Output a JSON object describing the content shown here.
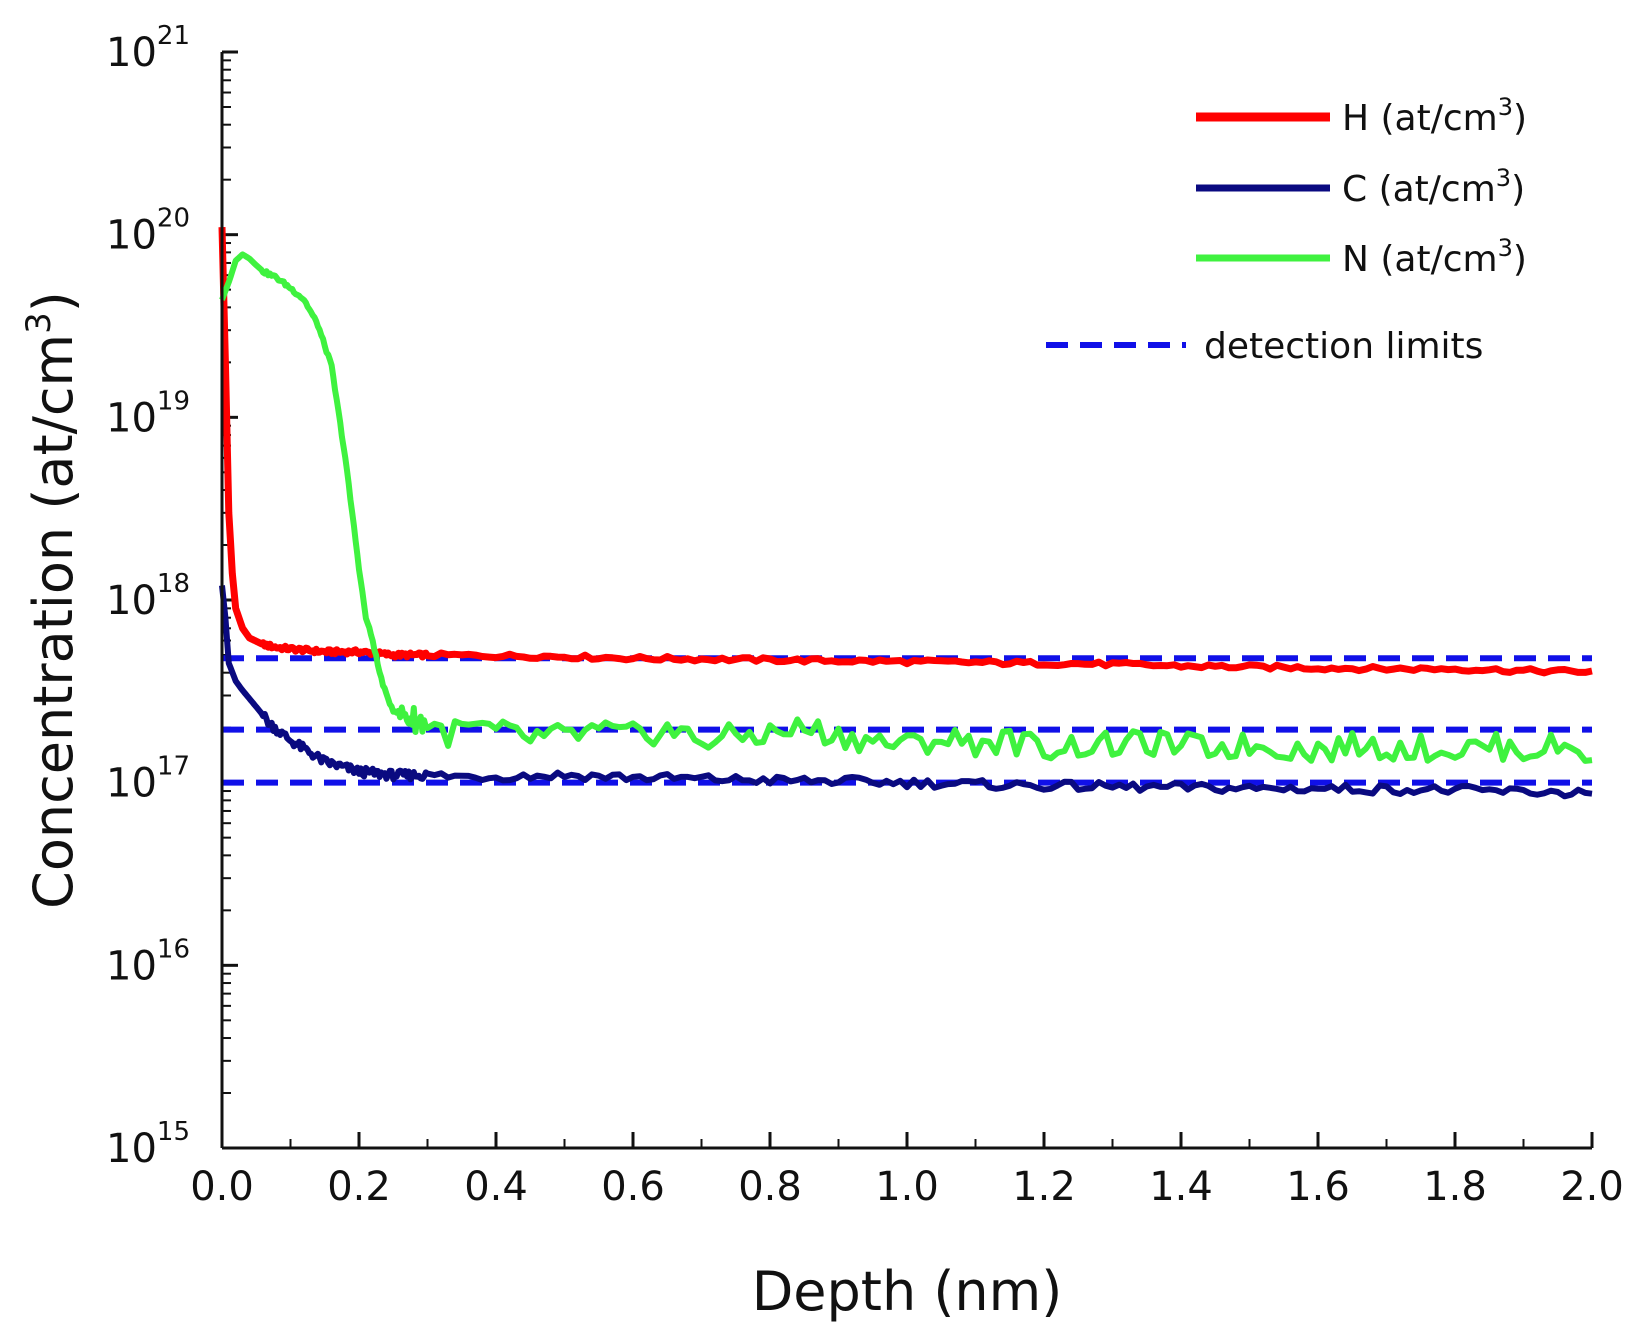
{
  "chart_data": {
    "type": "line",
    "title": "",
    "xlabel": "Depth (nm)",
    "ylabel_main": "Concentration (at/cm",
    "ylabel_sup": "3",
    "ylabel_close": ")",
    "xlim": [
      0.0,
      2.0
    ],
    "ylim": [
      1000000000000000.0,
      1e+21
    ],
    "yscale": "log",
    "xticks": [
      "0.0",
      "0.2",
      "0.4",
      "0.6",
      "0.8",
      "1.0",
      "1.2",
      "1.4",
      "1.6",
      "1.8",
      "2.0"
    ],
    "yticks": [
      {
        "base": "10",
        "exp": "15"
      },
      {
        "base": "10",
        "exp": "16"
      },
      {
        "base": "10",
        "exp": "17"
      },
      {
        "base": "10",
        "exp": "18"
      },
      {
        "base": "10",
        "exp": "19"
      },
      {
        "base": "10",
        "exp": "20"
      },
      {
        "base": "10",
        "exp": "21"
      }
    ],
    "legend_position": "top-right",
    "series": [
      {
        "name": "H (at/cm",
        "sup": "3",
        "close": ")",
        "color": "#ff0000",
        "x": [
          0.0,
          0.005,
          0.01,
          0.015,
          0.02,
          0.03,
          0.04,
          0.06,
          0.08,
          0.1,
          0.15,
          0.2,
          0.25,
          0.3,
          0.4,
          0.5,
          0.6,
          0.7,
          0.8,
          0.9,
          1.0,
          1.1,
          1.2,
          1.3,
          1.4,
          1.5,
          1.6,
          1.7,
          1.8,
          1.9,
          2.0
        ],
        "y": [
          1.1e+20,
          2e+19,
          3e+18,
          1.4e+18,
          9e+17,
          7e+17,
          6.2e+17,
          5.7e+17,
          5.5e+17,
          5.4e+17,
          5.2e+17,
          5.2e+17,
          5e+17,
          5e+17,
          4.95e+17,
          4.9e+17,
          4.8e+17,
          4.75e+17,
          4.7e+17,
          4.65e+17,
          4.6e+17,
          4.55e+17,
          4.5e+17,
          4.45e+17,
          4.35e+17,
          4.3e+17,
          4.25e+17,
          4.2e+17,
          4.2e+17,
          4.1e+17,
          4.05e+17
        ]
      },
      {
        "name": "C (at/cm",
        "sup": "3",
        "close": ")",
        "color": "#0a0a80",
        "x": [
          0.0,
          0.005,
          0.01,
          0.02,
          0.03,
          0.05,
          0.07,
          0.1,
          0.13,
          0.15,
          0.2,
          0.25,
          0.3,
          0.35,
          0.4,
          0.5,
          0.6,
          0.7,
          0.8,
          0.9,
          1.0,
          1.1,
          1.2,
          1.3,
          1.4,
          1.5,
          1.6,
          1.7,
          1.8,
          1.9,
          2.0
        ],
        "y": [
          1.2e+18,
          8e+17,
          4.5e+17,
          3.6e+17,
          3.2e+17,
          2.6e+17,
          2.1e+17,
          1.7e+17,
          1.45e+17,
          1.3e+17,
          1.15e+17,
          1.1e+17,
          1.1e+17,
          1.08e+17,
          1.08e+17,
          1.1e+17,
          1.07e+17,
          1.05e+17,
          1.03e+17,
          1.02e+17,
          1e+17,
          9.8e+16,
          9.6e+16,
          9.5e+16,
          9.4e+16,
          9.3e+16,
          9.3e+16,
          9.2e+16,
          9.1e+16,
          8.9e+16,
          8.8e+16
        ]
      },
      {
        "name": "N (at/cm",
        "sup": "3",
        "close": ")",
        "color": "#3ff23f",
        "x": [
          0.0,
          0.01,
          0.02,
          0.03,
          0.04,
          0.05,
          0.06,
          0.08,
          0.1,
          0.12,
          0.14,
          0.16,
          0.18,
          0.2,
          0.21,
          0.22,
          0.23,
          0.24,
          0.25,
          0.27,
          0.3,
          0.33,
          0.36,
          0.4,
          0.45,
          0.5,
          0.55,
          0.6,
          0.65,
          0.7,
          0.75,
          0.8,
          0.85,
          0.9,
          0.95,
          1.0,
          1.05,
          1.1,
          1.15,
          1.2,
          1.25,
          1.3,
          1.35,
          1.4,
          1.45,
          1.5,
          1.55,
          1.6,
          1.65,
          1.7,
          1.75,
          1.8,
          1.85,
          1.9,
          1.95,
          2.0
        ],
        "y": [
          4.4e+19,
          5.5e+19,
          7.2e+19,
          7.8e+19,
          7.4e+19,
          6.8e+19,
          6.3e+19,
          5.8e+19,
          5.1e+19,
          4.4e+19,
          3.2e+19,
          1.9e+19,
          6e+18,
          1.5e+18,
          8e+17,
          6e+17,
          4e+17,
          3e+17,
          2.5e+17,
          2.3e+17,
          2.1e+17,
          1.85e+17,
          2e+17,
          1.9e+17,
          1.75e+17,
          1.8e+17,
          1.9e+17,
          1.8e+17,
          1.95e+17,
          1.7e+17,
          1.8e+17,
          1.85e+17,
          2e+17,
          1.8e+17,
          1.7e+17,
          1.6e+17,
          1.75e+17,
          1.65e+17,
          1.7e+17,
          1.55e+17,
          1.6e+17,
          1.6e+17,
          1.65e+17,
          1.6e+17,
          1.55e+17,
          1.6e+17,
          1.55e+17,
          1.5e+17,
          1.6e+17,
          1.55e+17,
          1.55e+17,
          1.5e+17,
          1.6e+17,
          1.5e+17,
          1.6e+17,
          1.45e+17
        ]
      }
    ],
    "reference_lines": {
      "name": "detection limits",
      "color": "#1010e8",
      "values": [
        4.8e+17,
        1.95e+17,
        1e+17
      ]
    }
  }
}
